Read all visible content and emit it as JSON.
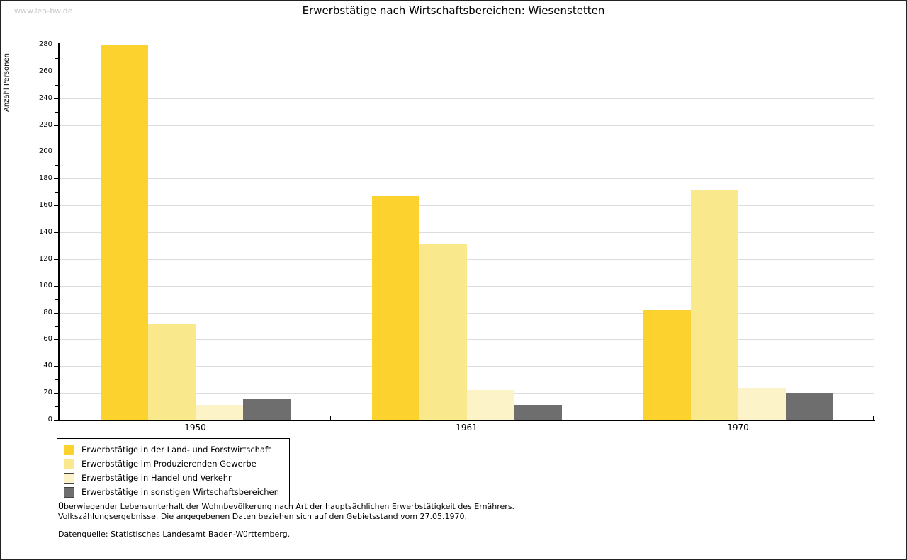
{
  "watermark": "www.leo-bw.de",
  "title": "Erwerbstätige nach Wirtschaftsbereichen: Wiesenstetten",
  "chart_data": {
    "type": "bar",
    "title": "Erwerbstätige nach Wirtschaftsbereichen: Wiesenstetten",
    "xlabel": "",
    "ylabel": "Anzahl Personen",
    "categories": [
      "1950",
      "1961",
      "1970"
    ],
    "series": [
      {
        "name": "Erwerbstätige in der Land- und Forstwirtschaft",
        "color": "#FCD22F",
        "values": [
          280,
          167,
          82
        ]
      },
      {
        "name": "Erwerbstätige im Produzierenden Gewerbe",
        "color": "#FAE88C",
        "values": [
          72,
          131,
          171
        ]
      },
      {
        "name": "Erwerbstätige in Handel und Verkehr",
        "color": "#FCF3C8",
        "values": [
          11,
          22,
          24
        ]
      },
      {
        "name": "Erwerbstätige in sonstigen Wirtschaftsbereichen",
        "color": "#6E6E6E",
        "values": [
          16,
          11,
          20
        ]
      }
    ],
    "ylim": [
      0,
      280
    ],
    "ytick_major_step": 20,
    "ytick_minor_step": 10,
    "yticks": [
      0,
      20,
      40,
      60,
      80,
      100,
      120,
      140,
      160,
      180,
      200,
      220,
      240,
      260,
      280
    ],
    "grid": true,
    "gridline_color": "#dcdcdc",
    "legend_position": "bottom-left"
  },
  "footer": {
    "footnote_line1": "Überwiegender Lebensunterhalt der Wohnbevölkerung nach Art der hauptsächlichen Erwerbstätigkeit des Ernährers.",
    "footnote_line2": "Volkszählungsergebnisse. Die angegebenen Daten beziehen sich auf den Gebietsstand vom 27.05.1970.",
    "source": "Datenquelle: Statistisches Landesamt Baden-Württemberg."
  }
}
